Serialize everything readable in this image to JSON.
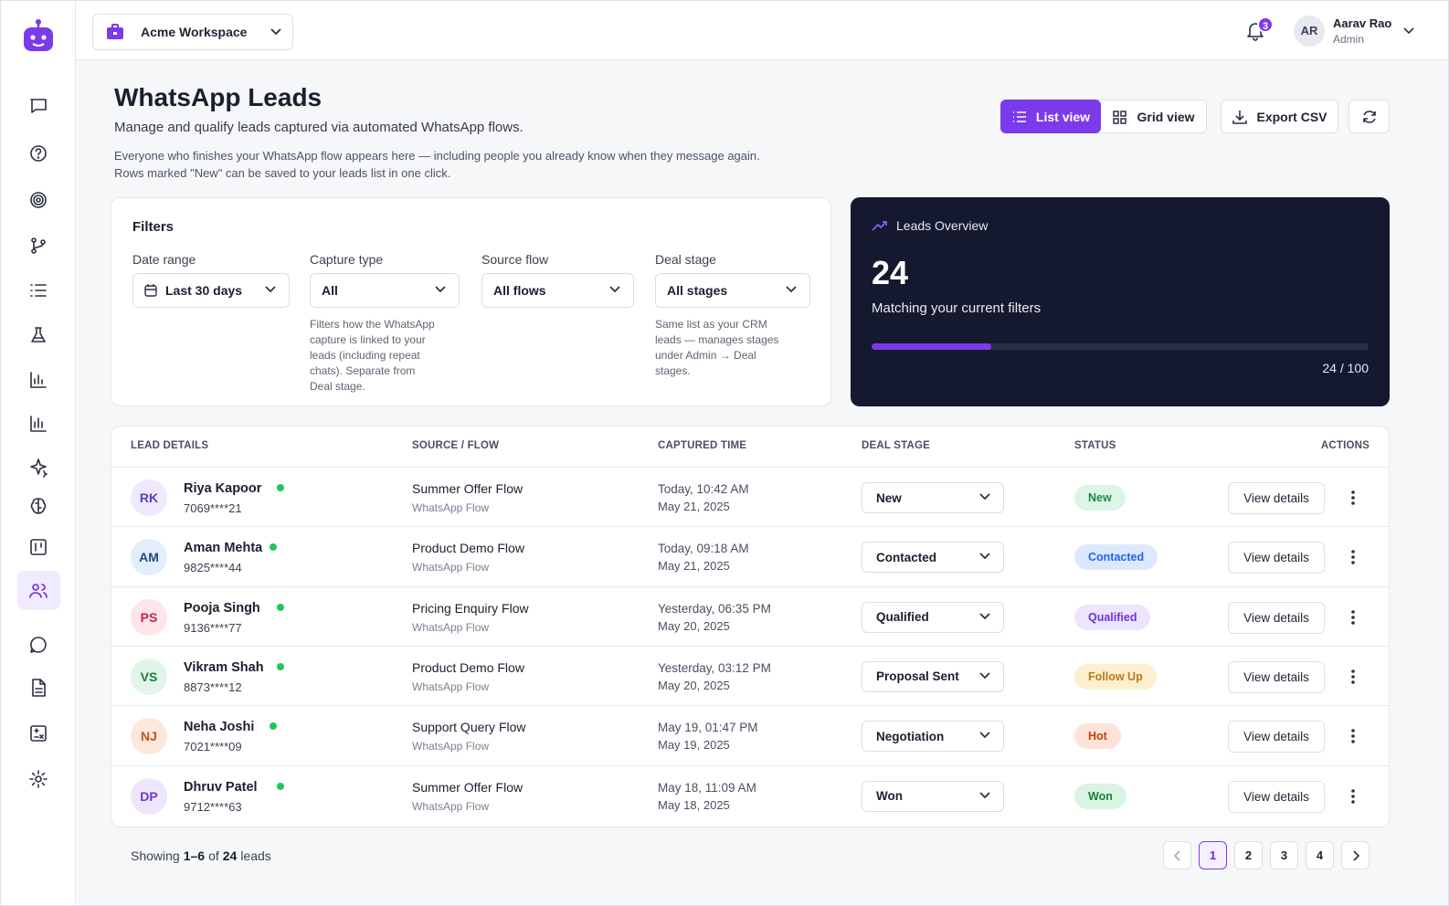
{
  "workspace": "Acme Workspace",
  "notifications": 3,
  "user": {
    "initials": "AR",
    "name": "Aarav Rao",
    "role": "Admin"
  },
  "header": {
    "title": "WhatsApp Leads",
    "subtitle": "Manage and qualify leads captured via automated WhatsApp flows.",
    "description": [
      "Everyone who finishes your WhatsApp flow appears here — including people you already know when they message again.",
      "Rows marked \"New\" can be saved to your leads list in one click."
    ]
  },
  "toolbar": {
    "views": [
      "List view",
      "Grid view"
    ],
    "active_view": 0,
    "export": "Export CSV"
  },
  "filters": {
    "title": "Filters",
    "fields": [
      {
        "label": "Date range",
        "value": "Last 30 days"
      },
      {
        "label": "Capture type",
        "value": "All",
        "help": "Filters how the WhatsApp capture is linked to your leads (including repeat chats). Separate from Deal stage."
      },
      {
        "label": "Source flow",
        "value": "All flows"
      },
      {
        "label": "Deal stage",
        "value": "All stages",
        "help": "Same list as your CRM leads — manages stages under Admin → Deal stages."
      }
    ]
  },
  "overview": {
    "title": "Leads Overview",
    "count": 24,
    "caption": "Matching your current filters",
    "progress": {
      "value": 24,
      "max": 100,
      "label": "24 / 100"
    }
  },
  "table": {
    "columns": [
      "LEAD DETAILS",
      "SOURCE / FLOW",
      "CAPTURED TIME",
      "DEAL STAGE",
      "STATUS",
      "ACTIONS"
    ],
    "action": "View details",
    "rows": [
      {
        "initials": "RK",
        "name": "Riya Kapoor",
        "phone": "7069****21",
        "flow": "Summer Offer Flow",
        "channel": "WhatsApp Flow",
        "time": "Today, 10:42 AM",
        "date": "May 21, 2025",
        "stage": "New",
        "status": "New",
        "avatar_color": [
          "#efe9fd",
          "#5b3bbf"
        ],
        "status_color": [
          "#dcf5e6",
          "#1d8a4a"
        ]
      },
      {
        "initials": "AM",
        "name": "Aman Mehta",
        "phone": "9825****44",
        "flow": "Product Demo Flow",
        "channel": "WhatsApp Flow",
        "time": "Today, 09:18 AM",
        "date": "May 21, 2025",
        "stage": "Contacted",
        "status": "Contacted",
        "avatar_color": [
          "#e3eefc",
          "#1e4a8a"
        ],
        "status_color": [
          "#dbe8fd",
          "#2563eb"
        ]
      },
      {
        "initials": "PS",
        "name": "Pooja Singh",
        "phone": "9136****77",
        "flow": "Pricing Enquiry Flow",
        "channel": "WhatsApp Flow",
        "time": "Yesterday, 06:35 PM",
        "date": "May 20, 2025",
        "stage": "Qualified",
        "status": "Qualified",
        "avatar_color": [
          "#fde5ea",
          "#c0264b"
        ],
        "status_color": [
          "#ede4fe",
          "#6d35d9"
        ]
      },
      {
        "initials": "VS",
        "name": "Vikram Shah",
        "phone": "8873****12",
        "flow": "Product Demo Flow",
        "channel": "WhatsApp Flow",
        "time": "Yesterday, 03:12 PM",
        "date": "May 20, 2025",
        "stage": "Proposal Sent",
        "status": "Follow Up",
        "avatar_color": [
          "#e1f6e8",
          "#237a44"
        ],
        "status_color": [
          "#fdf0cf",
          "#b7791f"
        ]
      },
      {
        "initials": "NJ",
        "name": "Neha Joshi",
        "phone": "7021****09",
        "flow": "Support Query Flow",
        "channel": "WhatsApp Flow",
        "time": "May 19, 01:47 PM",
        "date": "May 19, 2025",
        "stage": "Negotiation",
        "status": "Hot",
        "avatar_color": [
          "#fde8dc",
          "#c2561b"
        ],
        "status_color": [
          "#fde2d7",
          "#c2410c"
        ]
      },
      {
        "initials": "DP",
        "name": "Dhruv Patel",
        "phone": "9712****63",
        "flow": "Summer Offer Flow",
        "channel": "WhatsApp Flow",
        "time": "May 18, 11:09 AM",
        "date": "May 18, 2025",
        "stage": "Won",
        "status": "Won",
        "avatar_color": [
          "#efe6fd",
          "#6a3bc9"
        ],
        "status_color": [
          "#d9f4e3",
          "#15803d"
        ]
      }
    ]
  },
  "footer": {
    "prefix": "Showing",
    "range": "1–6",
    "of": "of",
    "total": 24,
    "suffix": "leads",
    "pages": [
      1,
      2,
      3,
      4
    ],
    "current_page": 1
  }
}
